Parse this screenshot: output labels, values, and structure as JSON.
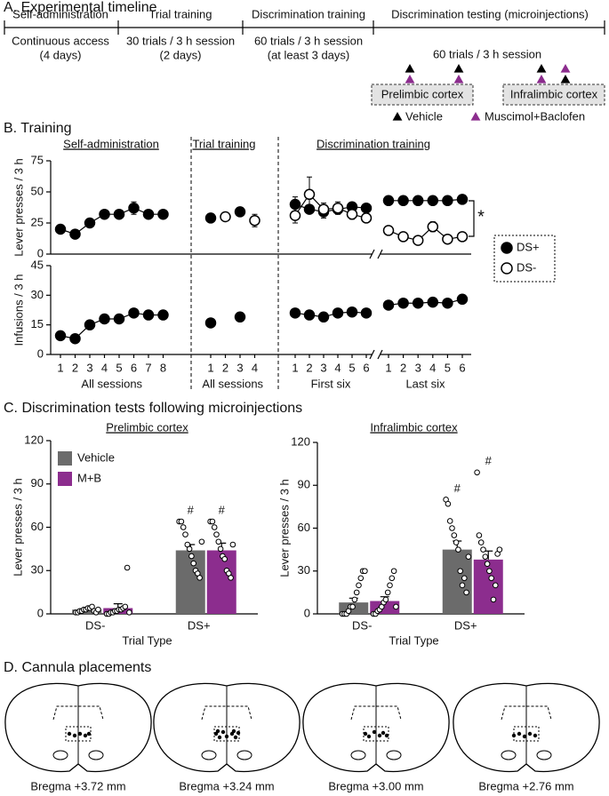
{
  "panel_a": {
    "title": "A. Experimental timeline",
    "phases": [
      {
        "name": "Self-administration",
        "details": [
          "Continuous access",
          "(4 days)"
        ]
      },
      {
        "name": "Trial training",
        "details": [
          "30 trials / 3 h session",
          "(2 days)"
        ]
      },
      {
        "name": "Discrimination training",
        "details": [
          "60 trials / 3 h session",
          "(at least 3 days)"
        ]
      },
      {
        "name": "Discrimination testing (microinjections)",
        "details": [
          "60 trials / 3 h session"
        ]
      }
    ],
    "regions": [
      "Prelimbic cortex",
      "Infralimbic cortex"
    ],
    "legend": [
      {
        "name": "Vehicle",
        "color": "#000000"
      },
      {
        "name": "Muscimol+Baclofen",
        "color": "#8c2d8e"
      }
    ]
  },
  "panel_b": {
    "title": "B. Training",
    "section_titles": [
      "Self-administration",
      "Trial training",
      "Discrimination training"
    ],
    "groups": [
      {
        "x": [
          1,
          2,
          3,
          4,
          5,
          6,
          7,
          8
        ],
        "xlabel": "All sessions"
      },
      {
        "x": [
          1,
          2,
          3,
          4
        ],
        "xlabel": "All sessions"
      },
      {
        "x": [
          1,
          2,
          3,
          4,
          5,
          6
        ],
        "xlabel": "First six"
      },
      {
        "x": [
          1,
          2,
          3,
          4,
          5,
          6
        ],
        "xlabel": "Last six"
      }
    ],
    "significance": "*"
  },
  "panel_c": {
    "title": "C. Discrimination tests following microinjections"
  },
  "panel_d": {
    "title": "D. Cannula placements",
    "sections": [
      "Bregma +3.72 mm",
      "Bregma +3.24 mm",
      "Bregma +3.00 mm",
      "Bregma +2.76 mm"
    ]
  },
  "chart_data": [
    {
      "type": "line",
      "ylabel": "Lever presses / 3 h",
      "ylim": [
        0,
        75
      ],
      "yticks": [
        0,
        25,
        50,
        75
      ],
      "series": [
        {
          "name": "DS+",
          "color": "#000000",
          "values": [
            [
              20,
              16,
              25,
              32,
              32,
              37,
              32,
              32
            ],
            [
              29,
              null,
              34,
              null
            ],
            [
              40,
              36,
              34,
              36,
              38,
              37
            ],
            [
              43,
              43,
              43,
              43,
              43,
              44
            ]
          ],
          "errors": [
            [
              1,
              1.5,
              1.5,
              2,
              2,
              5,
              2,
              2
            ],
            [
              2,
              null,
              2,
              null
            ],
            [
              6,
              3,
              5,
              3,
              3,
              3
            ],
            [
              2,
              2,
              2,
              2,
              2,
              2
            ]
          ]
        },
        {
          "name": "DS-",
          "color": "#ffffff",
          "values": [
            [
              null,
              null,
              null,
              null,
              null,
              null,
              null,
              null
            ],
            [
              null,
              30,
              null,
              27
            ],
            [
              31,
              48,
              36,
              37,
              32,
              29
            ],
            [
              19,
              14,
              11,
              22,
              12,
              14
            ]
          ],
          "errors": [
            [
              null,
              null,
              null,
              null,
              null,
              null,
              null,
              null
            ],
            [
              null,
              3,
              null,
              5
            ],
            [
              6,
              14,
              5,
              5,
              4,
              3
            ],
            [
              2,
              2,
              2,
              4,
              2,
              2
            ]
          ]
        }
      ]
    },
    {
      "type": "line",
      "ylabel": "Infusions / 3 h",
      "ylim": [
        0,
        45
      ],
      "yticks": [
        0,
        15,
        30,
        45
      ],
      "series": [
        {
          "color": "#000000",
          "values": [
            [
              9.5,
              8,
              15,
              18,
              18,
              21,
              20,
              20
            ],
            [
              16,
              null,
              19,
              null
            ],
            [
              21,
              20,
              19,
              21,
              21.5,
              21
            ],
            [
              25,
              26,
              26,
              26.5,
              26,
              28
            ]
          ],
          "errors": [
            [
              1,
              1,
              1,
              1,
              1.5,
              2,
              1,
              1
            ],
            [
              1,
              null,
              1,
              null
            ],
            [
              1,
              1,
              1,
              1,
              1,
              1
            ],
            [
              1,
              1,
              1,
              1,
              1.5,
              1
            ]
          ]
        }
      ]
    },
    {
      "type": "bar",
      "title": "Prelimbic cortex",
      "ylabel": "Lever presses / 3 h",
      "xlabel": "Trial Type",
      "categories": [
        "DS-",
        "DS+"
      ],
      "ylim": [
        0,
        120
      ],
      "yticks": [
        0,
        30,
        60,
        90,
        120
      ],
      "series": [
        {
          "name": "Vehicle",
          "color": "#6b6b6b",
          "values": [
            3,
            44
          ],
          "errors": [
            1,
            4
          ],
          "value_annotations": [
            null,
            "#"
          ],
          "points": [
            [
              1,
              1,
              2,
              2,
              3,
              3,
              4,
              4,
              5,
              2,
              1,
              3
            ],
            [
              64,
              64,
              60,
              55,
              48,
              45,
              40,
              35,
              30,
              28,
              25,
              50
            ]
          ]
        },
        {
          "name": "M+B",
          "color": "#8c2d8e",
          "values": [
            4,
            44
          ],
          "errors": [
            3,
            5
          ],
          "value_annotations": [
            null,
            "#"
          ],
          "points": [
            [
              0,
              0,
              1,
              1,
              2,
              2,
              3,
              3,
              4,
              5,
              32,
              1
            ],
            [
              64,
              64,
              60,
              55,
              50,
              45,
              40,
              38,
              30,
              28,
              25,
              48
            ]
          ]
        }
      ]
    },
    {
      "type": "bar",
      "title": "Infralimbic cortex",
      "ylabel": "Lever presses / 3 h",
      "xlabel": "Trial Type",
      "categories": [
        "DS-",
        "DS+"
      ],
      "ylim": [
        0,
        120
      ],
      "yticks": [
        0,
        30,
        60,
        90,
        120
      ],
      "series": [
        {
          "color": "#6b6b6b",
          "values": [
            8,
            45
          ],
          "errors": [
            3,
            6
          ],
          "value_annotations": [
            null,
            "#"
          ],
          "points": [
            [
              0,
              0,
              0,
              2,
              5,
              5,
              10,
              15,
              20,
              25,
              30,
              30
            ],
            [
              80,
              77,
              65,
              60,
              55,
              50,
              45,
              30,
              20,
              25,
              15,
              40
            ]
          ]
        },
        {
          "color": "#8c2d8e",
          "values": [
            9,
            38
          ],
          "errors": [
            3,
            6
          ],
          "value_annotations": [
            null,
            "#"
          ],
          "points": [
            [
              0,
              0,
              2,
              3,
              5,
              8,
              10,
              15,
              20,
              25,
              30,
              5
            ],
            [
              99,
              55,
              50,
              45,
              40,
              35,
              30,
              25,
              10,
              20,
              42,
              45
            ]
          ]
        }
      ]
    }
  ]
}
